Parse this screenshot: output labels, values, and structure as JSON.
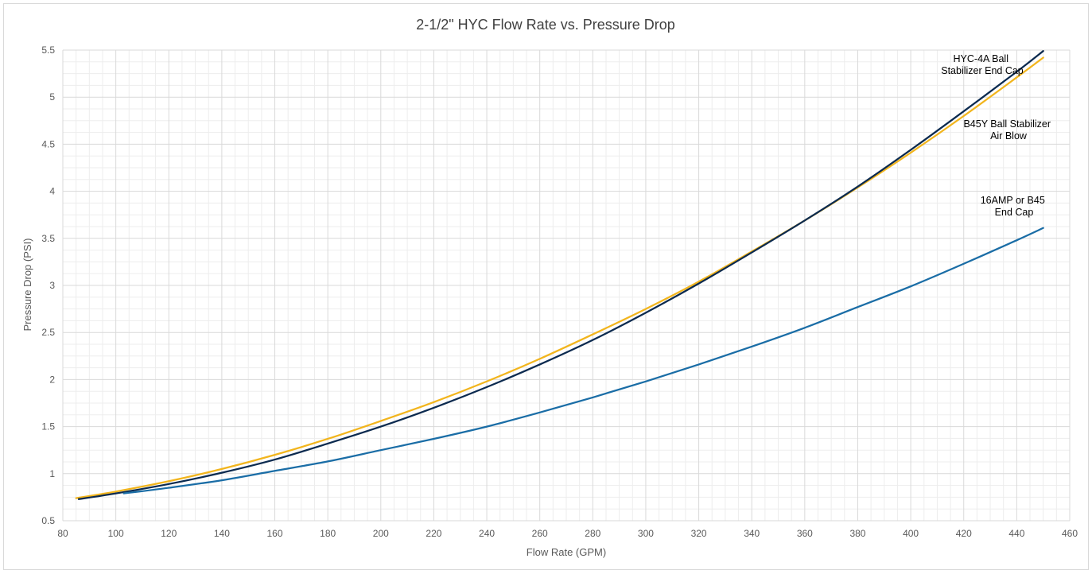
{
  "chart_data": {
    "type": "line",
    "title": "2-1/2\" HYC Flow Rate vs. Pressure Drop",
    "xlabel": "Flow Rate (GPM)",
    "ylabel": "Pressure Drop (PSI)",
    "xlim": [
      80,
      460
    ],
    "ylim": [
      0.5,
      5.5
    ],
    "x_ticks": [
      "80",
      "100",
      "120",
      "140",
      "160",
      "180",
      "200",
      "220",
      "240",
      "260",
      "280",
      "300",
      "320",
      "340",
      "360",
      "380",
      "400",
      "420",
      "440",
      "460"
    ],
    "y_ticks": [
      "0.5",
      "1",
      "1.5",
      "2",
      "2.5",
      "3",
      "3.5",
      "4",
      "4.5",
      "5",
      "5.5"
    ],
    "grid": true,
    "minor_grid": true,
    "series": [
      {
        "key": "b45y",
        "color": "#F2B51D",
        "x": [
          85,
          100,
          120,
          140,
          160,
          180,
          200,
          220,
          240,
          260,
          280,
          300,
          320,
          340,
          360,
          380,
          400,
          420,
          440,
          450
        ],
        "y": [
          0.74,
          0.81,
          0.92,
          1.05,
          1.2,
          1.37,
          1.56,
          1.76,
          1.98,
          2.22,
          2.48,
          2.75,
          3.04,
          3.36,
          3.69,
          4.04,
          4.41,
          4.8,
          5.21,
          5.42
        ]
      },
      {
        "key": "hyc4a",
        "color": "#0B2A4F",
        "x": [
          86,
          100,
          120,
          140,
          160,
          180,
          200,
          220,
          240,
          260,
          280,
          300,
          320,
          340,
          360,
          380,
          400,
          420,
          440,
          450
        ],
        "y": [
          0.73,
          0.79,
          0.89,
          1.01,
          1.15,
          1.32,
          1.5,
          1.7,
          1.92,
          2.16,
          2.42,
          2.71,
          3.02,
          3.35,
          3.69,
          4.05,
          4.44,
          4.85,
          5.27,
          5.49
        ]
      },
      {
        "key": "16amp",
        "color": "#1A6DA6",
        "x": [
          103,
          120,
          140,
          160,
          180,
          200,
          220,
          240,
          260,
          280,
          300,
          320,
          340,
          360,
          380,
          400,
          420,
          440,
          450
        ],
        "y": [
          0.79,
          0.85,
          0.93,
          1.03,
          1.13,
          1.25,
          1.37,
          1.5,
          1.65,
          1.81,
          1.98,
          2.16,
          2.35,
          2.55,
          2.77,
          2.99,
          3.23,
          3.48,
          3.61
        ]
      }
    ],
    "annotations": [
      {
        "key": "hyc4a",
        "lines": [
          "HYC-4A Ball",
          "Stabilizer End Cap"
        ]
      },
      {
        "key": "b45y",
        "lines": [
          "B45Y Ball Stabilizer",
          "Air Blow"
        ]
      },
      {
        "key": "16amp",
        "lines": [
          "16AMP or B45",
          "End Cap"
        ]
      }
    ]
  }
}
